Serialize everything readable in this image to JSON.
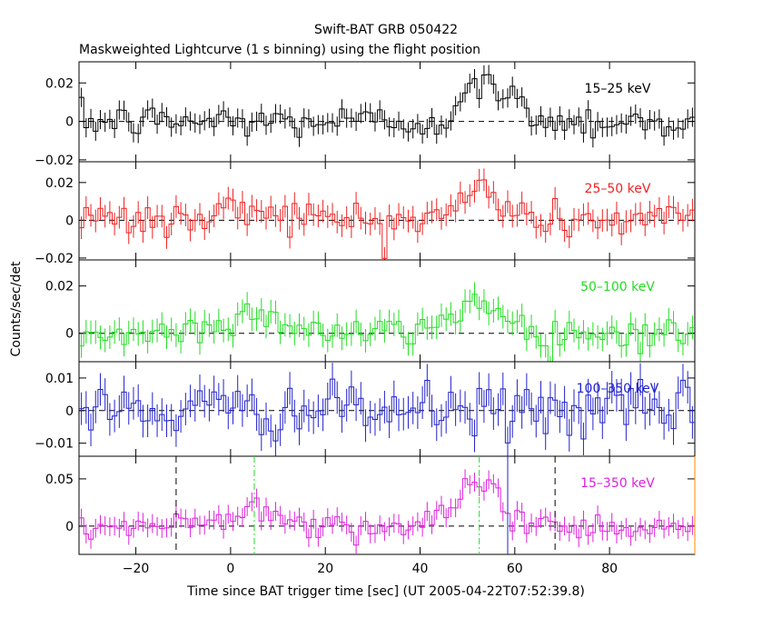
{
  "chart_data": {
    "type": "line",
    "title": "Swift-BAT GRB 050422",
    "subtitle": "Maskweighted Lightcurve (1 s binning) using the flight position",
    "xlabel": "Time since BAT trigger time [sec] (UT 2005-04-22T07:52:39.8)",
    "ylabel": "Counts/sec/det",
    "xlim": [
      -32,
      98
    ],
    "x_ticks": [
      -20,
      0,
      20,
      40,
      60,
      80
    ],
    "x_tick_labels": [
      "−20",
      "0",
      "20",
      "40",
      "60",
      "80"
    ],
    "panels": [
      {
        "name": "15-25",
        "label": "15–25 keV",
        "color": "#000000",
        "ylim": [
          -0.021,
          0.031
        ],
        "y_ticks": [
          0.02,
          0,
          -0.02
        ],
        "y_tick_labels": [
          "0.02",
          "0",
          "−0.02"
        ],
        "noise": 0.0045,
        "err": 0.005,
        "bumps": [
          {
            "center": 54,
            "amp": 0.019,
            "width": 4
          },
          {
            "center": 62,
            "amp": 0.004,
            "width": 4
          }
        ]
      },
      {
        "name": "25-50",
        "label": "25–50 keV",
        "color": "#ee2222",
        "ylim": [
          -0.021,
          0.031
        ],
        "y_ticks": [
          0.02,
          0,
          -0.02
        ],
        "y_tick_labels": [
          "0.02",
          "0",
          "−0.02"
        ],
        "noise": 0.005,
        "err": 0.006,
        "bumps": [
          {
            "center": 6,
            "amp": 0.007,
            "width": 6
          },
          {
            "center": 53,
            "amp": 0.017,
            "width": 4
          }
        ]
      },
      {
        "name": "50-100",
        "label": "50–100 keV",
        "color": "#22dd22",
        "ylim": [
          -0.012,
          0.031
        ],
        "y_ticks": [
          0.02,
          0
        ],
        "y_tick_labels": [
          "0.02",
          "0"
        ],
        "noise": 0.0035,
        "err": 0.005,
        "bumps": [
          {
            "center": 5,
            "amp": 0.008,
            "width": 7
          },
          {
            "center": 52,
            "amp": 0.014,
            "width": 5
          }
        ]
      },
      {
        "name": "100-350",
        "label": "100–350 keV",
        "color": "#2222cc",
        "ylim": [
          -0.014,
          0.015
        ],
        "y_ticks": [
          0.01,
          0,
          -0.01
        ],
        "y_tick_labels": [
          "0.01",
          "0",
          "−0.01"
        ],
        "noise": 0.004,
        "err": 0.005,
        "bumps": []
      },
      {
        "name": "15-350",
        "label": "15–350 keV",
        "color": "#dd22dd",
        "ylim": [
          -0.03,
          0.074
        ],
        "y_ticks": [
          0.05,
          0
        ],
        "y_tick_labels": [
          "0.05",
          "0"
        ],
        "noise": 0.008,
        "err": 0.01,
        "bumps": [
          {
            "center": 6,
            "amp": 0.022,
            "width": 6
          },
          {
            "center": 53,
            "amp": 0.05,
            "width": 4
          }
        ]
      }
    ],
    "markers": [
      {
        "x": -11.5,
        "color": "#000000",
        "style": "dashed",
        "panel": "15-350"
      },
      {
        "x": 5.0,
        "color": "#22dd22",
        "style": "dashdot",
        "panel": "15-350"
      },
      {
        "x": 52.5,
        "color": "#22dd22",
        "style": "dashdot",
        "panel": "15-350"
      },
      {
        "x": 58.5,
        "color": "#2222cc",
        "style": "solid",
        "panel": "15-350"
      },
      {
        "x": 68.5,
        "color": "#000000",
        "style": "dashed",
        "panel": "15-350"
      },
      {
        "x": 98.0,
        "color": "#ff8800",
        "style": "solid",
        "panel": "15-350"
      }
    ]
  }
}
